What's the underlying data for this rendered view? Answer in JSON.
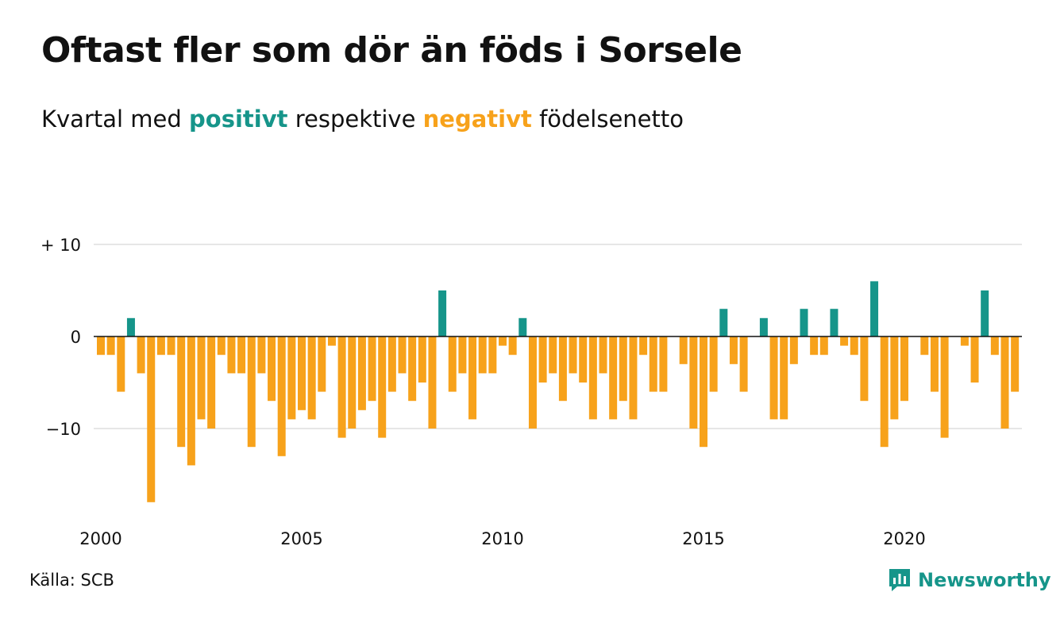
{
  "title": "Oftast fler som dör än föds i Sorsele",
  "subtitle": {
    "part1": "Kvartal med ",
    "positive_word": "positivt",
    "part2": " respektive ",
    "negative_word": "negativt",
    "part3": " födelsenetto"
  },
  "colors": {
    "positive": "#16958a",
    "negative": "#f7a21b",
    "grid": "#dddddd",
    "zero_line": "#111111"
  },
  "footer": {
    "source": "Källa: SCB",
    "brand": "Newsworthy",
    "brand_icon": "newsworthy-logo-icon"
  },
  "chart_data": {
    "type": "bar",
    "title": "Oftast fler som dör än föds i Sorsele",
    "subtitle": "Kvartal med positivt respektive negativt födelsenetto",
    "x_unit": "quarter",
    "x_start": "2000 Q1",
    "y_ticks": [
      10,
      0,
      -10
    ],
    "y_tick_labels": [
      "+ 10",
      "0",
      "−10"
    ],
    "ylim": [
      -19,
      10
    ],
    "x_tick_labels": [
      "2000",
      "2005",
      "2010",
      "2015",
      "2020"
    ],
    "grid": true,
    "values": [
      -2,
      -2,
      -6,
      2,
      -4,
      -18,
      -2,
      -2,
      -12,
      -14,
      -9,
      -10,
      -2,
      -4,
      -4,
      -12,
      -4,
      -7,
      -13,
      -9,
      -8,
      -9,
      -6,
      -1,
      -11,
      -10,
      -8,
      -7,
      -11,
      -6,
      -4,
      -7,
      -5,
      -10,
      5,
      -6,
      -4,
      -9,
      -4,
      -4,
      -1,
      -2,
      2,
      -10,
      -5,
      -4,
      -7,
      -4,
      -5,
      -9,
      -4,
      -9,
      -7,
      -9,
      -2,
      -6,
      -6,
      0,
      -3,
      -10,
      -12,
      -6,
      3,
      -3,
      -6,
      0,
      2,
      -9,
      -9,
      -3,
      3,
      -2,
      -2,
      3,
      -1,
      -2,
      -7,
      6,
      -12,
      -9,
      -7,
      0,
      -2,
      -6,
      -11,
      0,
      -1,
      -5,
      5,
      -2,
      -10,
      -6
    ]
  }
}
